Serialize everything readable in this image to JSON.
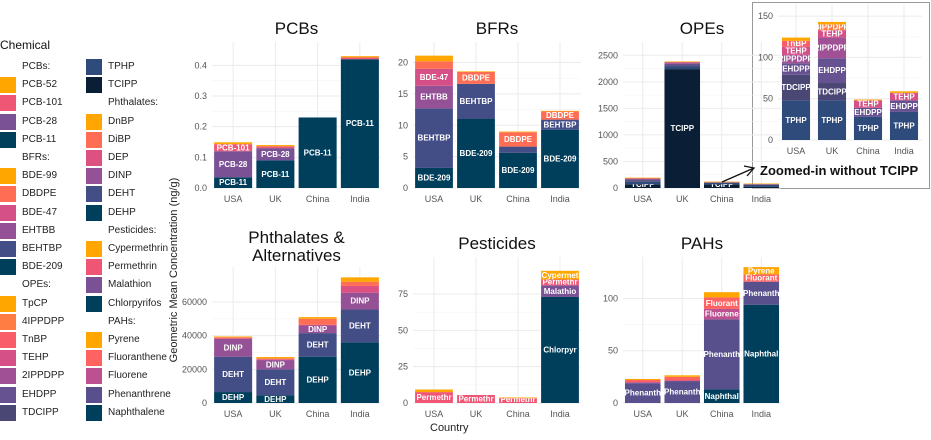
{
  "figure": {
    "y_axis_label": "Geometric Mean Concentration (ng/g)",
    "x_axis_label": "Country",
    "inset_caption": "Zoomed-in without TCIPP"
  },
  "legend": {
    "title": "Chemical",
    "columns": [
      [
        {
          "type": "header",
          "label": "PCBs:"
        },
        {
          "label": "PCB-52",
          "color": "#FFA600"
        },
        {
          "label": "PCB-101",
          "color": "#EF5675"
        },
        {
          "label": "PCB-28",
          "color": "#7A5195"
        },
        {
          "label": "PCB-11",
          "color": "#003F5C"
        },
        {
          "type": "header",
          "label": "BFRs:"
        },
        {
          "label": "BDE-99",
          "color": "#FFA600"
        },
        {
          "label": "DBDPE",
          "color": "#FF6E54"
        },
        {
          "label": "BDE-47",
          "color": "#D45087"
        },
        {
          "label": "EHTBB",
          "color": "#955196"
        },
        {
          "label": "BEHTBP",
          "color": "#444E86"
        },
        {
          "label": "BDE-209",
          "color": "#003F5C"
        },
        {
          "type": "header",
          "label": "OPEs:"
        },
        {
          "label": "TpCP",
          "color": "#FFA600"
        },
        {
          "label": "4IPPDPP",
          "color": "#FF7C43"
        },
        {
          "label": "TnBP",
          "color": "#F95D6A"
        },
        {
          "label": "TEHP",
          "color": "#D45087"
        },
        {
          "label": "2IPPDPP",
          "color": "#A05195"
        },
        {
          "label": "EHDPP",
          "color": "#665191"
        },
        {
          "label": "TDCIPP",
          "color": "#4A4775"
        }
      ],
      [
        {
          "label": "TPHP",
          "color": "#2F4B7C"
        },
        {
          "label": "TCIPP",
          "color": "#0A1F36"
        },
        {
          "type": "header",
          "label": "Phthalates:"
        },
        {
          "label": "DnBP",
          "color": "#FFA600"
        },
        {
          "label": "DiBP",
          "color": "#FF6E54"
        },
        {
          "label": "DEP",
          "color": "#DD5182"
        },
        {
          "label": "DINP",
          "color": "#955196"
        },
        {
          "label": "DEHT",
          "color": "#444E86"
        },
        {
          "label": "DEHP",
          "color": "#003F5C"
        },
        {
          "type": "header",
          "label": "Pesticides:"
        },
        {
          "label": "Cypermethrin",
          "color": "#FFA600"
        },
        {
          "label": "Permethrin",
          "color": "#EF5675"
        },
        {
          "label": "Malathion",
          "color": "#7A5195"
        },
        {
          "label": "Chlorpyrifos",
          "color": "#003F5C"
        },
        {
          "type": "header",
          "label": "PAHs:"
        },
        {
          "label": "Pyrene",
          "color": "#FFA600"
        },
        {
          "label": "Fluoranthene",
          "color": "#FF6361"
        },
        {
          "label": "Fluorene",
          "color": "#BC5090"
        },
        {
          "label": "Phenanthrene",
          "color": "#58508D"
        },
        {
          "label": "Naphthalene",
          "color": "#003F5C"
        }
      ]
    ]
  },
  "chart_data": [
    {
      "id": "pcbs",
      "type": "bar",
      "stacked": true,
      "title": "PCBs",
      "categories": [
        "USA",
        "UK",
        "China",
        "India"
      ],
      "ylim": [
        0,
        0.45
      ],
      "yticks": [
        0,
        0.1,
        0.2,
        0.3,
        0.4
      ],
      "ytick_labels": [
        "0.0",
        "0.1",
        "0.2",
        "0.3",
        "0.4"
      ],
      "series": [
        {
          "name": "PCB-11",
          "short": "PCB-11",
          "color": "#003F5C",
          "values": [
            0.035,
            0.09,
            0.23,
            0.42
          ]
        },
        {
          "name": "PCB-28",
          "short": "PCB-28",
          "color": "#7A5195",
          "values": [
            0.085,
            0.04,
            0,
            0
          ]
        },
        {
          "name": "PCB-101",
          "short": "PCB-101",
          "color": "#EF5675",
          "values": [
            0.023,
            0.006,
            0,
            0.006
          ]
        },
        {
          "name": "PCB-52",
          "short": "",
          "color": "#FFA600",
          "values": [
            0.006,
            0.004,
            0,
            0.004
          ]
        }
      ],
      "labels": [
        [
          "PCB-11",
          "PCB-28",
          "PCB-101",
          ""
        ],
        [
          "PCB-11",
          "PCB-28",
          "",
          ""
        ],
        [
          "PCB-11",
          "",
          "",
          ""
        ],
        [
          "PCB-11",
          "",
          "",
          ""
        ]
      ]
    },
    {
      "id": "bfrs",
      "type": "bar",
      "stacked": true,
      "title": "BFRs",
      "categories": [
        "USA",
        "UK",
        "China",
        "India"
      ],
      "ylim": [
        0,
        22
      ],
      "yticks": [
        0,
        5,
        10,
        15,
        20
      ],
      "ytick_labels": [
        "0",
        "5",
        "10",
        "15",
        "20"
      ],
      "series": [
        {
          "name": "BDE-209",
          "color": "#003F5C",
          "values": [
            3.2,
            11.0,
            5.6,
            9.3
          ]
        },
        {
          "name": "BEHTBP",
          "color": "#444E86",
          "values": [
            9.5,
            5.6,
            1.0,
            1.6
          ]
        },
        {
          "name": "EHTBB",
          "color": "#955196",
          "values": [
            3.6,
            0,
            0,
            0
          ]
        },
        {
          "name": "BDE-47",
          "color": "#D45087",
          "values": [
            2.7,
            0,
            0,
            0
          ]
        },
        {
          "name": "DBDPE",
          "color": "#FF6E54",
          "values": [
            1.2,
            1.9,
            2.3,
            1.3
          ]
        },
        {
          "name": "BDE-99",
          "color": "#FFA600",
          "values": [
            0.9,
            0.1,
            0.1,
            0.1
          ]
        }
      ],
      "labels": [
        [
          "BDE-209",
          "BEHTBP",
          "EHTBB",
          "BDE-47",
          "",
          ""
        ],
        [
          "BDE-209",
          "BEHTBP",
          "",
          "",
          "DBDPE",
          ""
        ],
        [
          "BDE-209",
          "",
          "",
          "",
          "DBDPE",
          ""
        ],
        [
          "BDE-209",
          "BEHTBP",
          "",
          "",
          "DBDPE",
          ""
        ]
      ]
    },
    {
      "id": "opes",
      "type": "bar",
      "stacked": true,
      "title": "OPEs",
      "categories": [
        "USA",
        "UK",
        "China",
        "India"
      ],
      "ylim": [
        0,
        2600
      ],
      "yticks": [
        0,
        500,
        1000,
        1500,
        2000,
        2500
      ],
      "ytick_labels": [
        "0",
        "500",
        "1000",
        "1500",
        "2000",
        "2500"
      ],
      "series": [
        {
          "name": "TCIPP",
          "color": "#0A1F36",
          "values": [
            70,
            2240,
            70,
            25
          ]
        },
        {
          "name": "TPHP",
          "color": "#2F4B7C",
          "values": [
            48,
            48,
            28,
            34
          ]
        },
        {
          "name": "TDCIPP",
          "color": "#4A4775",
          "values": [
            31,
            21,
            0,
            0
          ]
        },
        {
          "name": "EHDPP",
          "color": "#665191",
          "values": [
            14,
            30,
            11,
            14
          ]
        },
        {
          "name": "2IPPDPP",
          "color": "#A05195",
          "values": [
            10,
            25,
            0,
            0
          ]
        },
        {
          "name": "TEHP",
          "color": "#D45087",
          "values": [
            10,
            9,
            9,
            9
          ]
        },
        {
          "name": "TnBP",
          "color": "#F95D6A",
          "values": [
            7,
            0,
            0,
            0
          ]
        },
        {
          "name": "4IPPDPP",
          "color": "#FF7C43",
          "values": [
            0,
            7,
            0,
            0
          ]
        },
        {
          "name": "TpCP",
          "color": "#FFA600",
          "values": [
            4,
            3,
            1,
            2
          ]
        }
      ],
      "labels": [
        [
          "TCIPP",
          "",
          "",
          "",
          "",
          "",
          "",
          "",
          ""
        ],
        [
          "TCIPP",
          "",
          "",
          "",
          "",
          "",
          "",
          "",
          ""
        ],
        [
          "TCIPP",
          "",
          "",
          "",
          "",
          "",
          "",
          "",
          ""
        ],
        [
          "",
          "",
          "",
          "",
          "",
          "",
          "",
          "",
          ""
        ]
      ]
    },
    {
      "id": "opes_inset",
      "type": "bar",
      "stacked": true,
      "title": "",
      "caption": "Zoomed-in without TCIPP",
      "categories": [
        "USA",
        "UK",
        "China",
        "India"
      ],
      "ylim": [
        0,
        155
      ],
      "yticks": [
        0,
        50,
        100,
        150
      ],
      "ytick_labels": [
        "0",
        "50",
        "100",
        "150"
      ],
      "series": [
        {
          "name": "TPHP",
          "color": "#2F4B7C",
          "values": [
            48,
            48,
            28,
            34
          ]
        },
        {
          "name": "TDCIPP",
          "color": "#4A4775",
          "values": [
            31,
            21,
            0,
            0
          ]
        },
        {
          "name": "EHDPP",
          "color": "#665191",
          "values": [
            14,
            30,
            11,
            14
          ]
        },
        {
          "name": "2IPPDPP",
          "color": "#A05195",
          "values": [
            10,
            25,
            0,
            0
          ]
        },
        {
          "name": "TEHP",
          "color": "#D45087",
          "values": [
            10,
            9,
            9,
            9
          ]
        },
        {
          "name": "TnBP",
          "color": "#F95D6A",
          "values": [
            7,
            0,
            0,
            0
          ]
        },
        {
          "name": "4IPPDPP",
          "color": "#FF7C43",
          "values": [
            0,
            7,
            0,
            0
          ]
        },
        {
          "name": "TpCP",
          "color": "#FFA600",
          "values": [
            4,
            3,
            1,
            2
          ]
        }
      ],
      "labels": [
        [
          "TPHP",
          "TDCIPP",
          "EHDPP",
          "2IPPDPP",
          "TEHP",
          "TnBP",
          "",
          ""
        ],
        [
          "TPHP",
          "TDCIPP",
          "EHDPP",
          "2IPPDPP",
          "TEHP",
          "",
          "4IPPDPP",
          ""
        ],
        [
          "TPHP",
          "",
          "EHDPP",
          "",
          "TEHP",
          "",
          "",
          ""
        ],
        [
          "TPHP",
          "",
          "EHDPP",
          "",
          "TEHP",
          "",
          "",
          ""
        ]
      ]
    },
    {
      "id": "phthalates",
      "type": "bar",
      "stacked": true,
      "title": "Phthalates &\nAlternatives",
      "title_lines": [
        "Phthalates &",
        "Alternatives"
      ],
      "categories": [
        "USA",
        "UK",
        "China",
        "India"
      ],
      "ylim": [
        0,
        76000
      ],
      "yticks": [
        0,
        20000,
        40000,
        60000
      ],
      "ytick_labels": [
        "0",
        "20000",
        "40000",
        "60000"
      ],
      "series": [
        {
          "name": "DEHP",
          "color": "#003F5C",
          "values": [
            6500,
            4500,
            27500,
            36000
          ]
        },
        {
          "name": "DEHT",
          "color": "#444E86",
          "values": [
            21000,
            15500,
            14000,
            19500
          ]
        },
        {
          "name": "DINP",
          "color": "#955196",
          "values": [
            10500,
            5500,
            4500,
            10000
          ]
        },
        {
          "name": "DEP",
          "color": "#DD5182",
          "values": [
            500,
            500,
            500,
            4000
          ]
        },
        {
          "name": "DiBP",
          "color": "#FF6E54",
          "values": [
            500,
            500,
            3500,
            2500
          ]
        },
        {
          "name": "DnBP",
          "color": "#FFA600",
          "values": [
            500,
            800,
            1000,
            2600
          ]
        }
      ],
      "labels": [
        [
          "DEHP",
          "DEHT",
          "DINP",
          "",
          "",
          ""
        ],
        [
          "DEHP",
          "DEHT",
          "DINP",
          "",
          "",
          ""
        ],
        [
          "DEHP",
          "DEHT",
          "DINP",
          "",
          "",
          ""
        ],
        [
          "DEHP",
          "DEHT",
          "DINP",
          "",
          "",
          ""
        ]
      ]
    },
    {
      "id": "pesticides",
      "type": "bar",
      "stacked": true,
      "title": "Pesticides",
      "categories": [
        "USA",
        "UK",
        "China",
        "India"
      ],
      "ylim": [
        0,
        95
      ],
      "yticks": [
        0,
        25,
        50,
        75
      ],
      "ytick_labels": [
        "0",
        "25",
        "50",
        "75"
      ],
      "series": [
        {
          "name": "Chlorpyrifos",
          "color": "#003F5C",
          "values": [
            0,
            0,
            0,
            73
          ]
        },
        {
          "name": "Malathion",
          "color": "#7A5195",
          "values": [
            0,
            0,
            0,
            8
          ]
        },
        {
          "name": "Permethrin",
          "color": "#EF5675",
          "values": [
            7.5,
            5.5,
            3.3,
            4
          ]
        },
        {
          "name": "Cypermethrin",
          "color": "#FFA600",
          "values": [
            1.8,
            0,
            0.5,
            6
          ]
        }
      ],
      "labels": [
        [
          "",
          "",
          "Permethr",
          ""
        ],
        [
          "",
          "",
          "Permethr",
          ""
        ],
        [
          "",
          "",
          "Permethr",
          ""
        ],
        [
          "Chlorpyr",
          "Malathio",
          "Permethr",
          "Cypermet"
        ]
      ]
    },
    {
      "id": "pahs",
      "type": "bar",
      "stacked": true,
      "title": "PAHs",
      "categories": [
        "USA",
        "UK",
        "China",
        "India"
      ],
      "ylim": [
        0,
        132
      ],
      "yticks": [
        0,
        50,
        100
      ],
      "ytick_labels": [
        "0",
        "50",
        "100"
      ],
      "series": [
        {
          "name": "Naphthalene",
          "color": "#003F5C",
          "values": [
            0,
            0,
            13,
            94
          ]
        },
        {
          "name": "Phenanthrene",
          "color": "#58508D",
          "values": [
            19,
            21,
            67,
            22
          ]
        },
        {
          "name": "Fluorene",
          "color": "#BC5090",
          "values": [
            1,
            0.5,
            10,
            0
          ]
        },
        {
          "name": "Fluoranthene",
          "color": "#FF6361",
          "values": [
            2,
            3.5,
            11,
            7
          ]
        },
        {
          "name": "Pyrene",
          "color": "#FFA600",
          "values": [
            1,
            1.5,
            5,
            7
          ]
        }
      ],
      "labels": [
        [
          "",
          "Phenanth",
          "",
          "",
          ""
        ],
        [
          "",
          "Phenanth",
          "",
          "",
          ""
        ],
        [
          "Naphthal",
          "Phenanth",
          "Fluorene",
          "Fluorant",
          ""
        ],
        [
          "Naphthal",
          "Phenanth",
          "",
          "Fluorant",
          "Pyrene"
        ]
      ]
    }
  ]
}
